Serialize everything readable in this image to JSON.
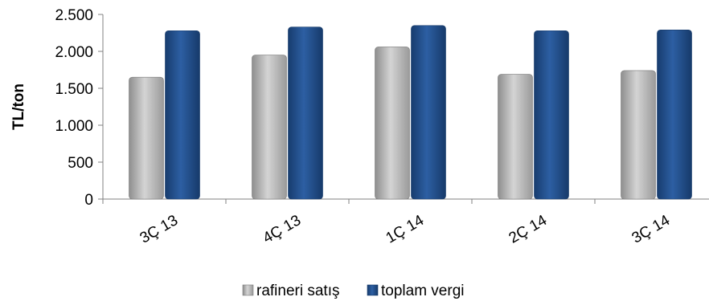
{
  "chart_data": {
    "type": "bar",
    "ylabel": "TL/ton",
    "xlabel": "",
    "categories": [
      "3Ç 13",
      "4Ç 13",
      "1Ç 14",
      "2Ç 14",
      "3Ç 14"
    ],
    "ylim": [
      0,
      2500
    ],
    "yticks": [
      0,
      500,
      1000,
      1500,
      2000,
      2500
    ],
    "ytick_labels": [
      "0",
      "500",
      "1.000",
      "1.500",
      "2.000",
      "2.500"
    ],
    "series": [
      {
        "name": "rafineri satış",
        "values": [
          1650,
          1950,
          2060,
          1690,
          1740
        ],
        "color": "#b3b3b3"
      },
      {
        "name": "toplam vergi",
        "values": [
          2280,
          2330,
          2350,
          2280,
          2290
        ],
        "color": "#1f4e8c"
      }
    ],
    "legend_position": "bottom",
    "grid": false
  }
}
